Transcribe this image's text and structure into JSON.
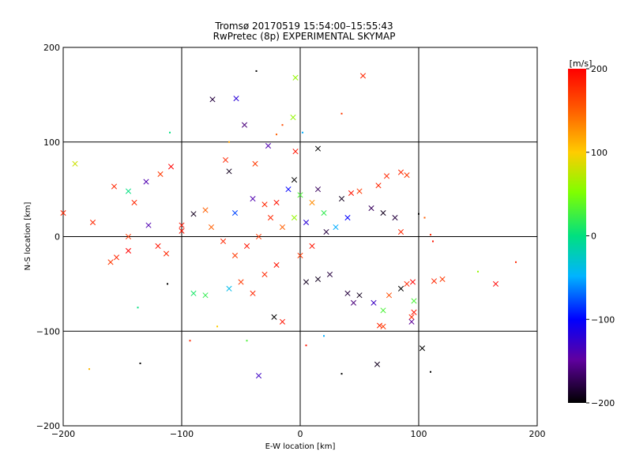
{
  "chart_data": {
    "type": "scatter",
    "title": "Tromsø 20170519 15:54:00–15:55:43",
    "subtitle": "RwPretec (8p) EXPERIMENTAL SKYMAP",
    "xlabel": "E-W location [km]",
    "ylabel": "N-S location [km]",
    "xlim": [
      -200,
      200
    ],
    "ylim": [
      -200,
      200
    ],
    "xticks": [
      "−200",
      "−100",
      "0",
      "100",
      "200"
    ],
    "yticks": [
      "−200",
      "−100",
      "0",
      "100",
      "200"
    ],
    "grid": true,
    "colorbar": {
      "label": "[m/s]",
      "min": -200,
      "max": 200,
      "ticks": [
        "200",
        "100",
        "0",
        "−100",
        "−200"
      ],
      "placement": "right"
    },
    "series": [
      {
        "marker": "x",
        "points": [
          {
            "x": 53,
            "y": 170,
            "v": 180
          },
          {
            "x": -4,
            "y": 168,
            "v": 60
          },
          {
            "x": -74,
            "y": 145,
            "v": -180
          },
          {
            "x": -54,
            "y": 146,
            "v": -120
          },
          {
            "x": -6,
            "y": 126,
            "v": 60
          },
          {
            "x": -47,
            "y": 118,
            "v": -160
          },
          {
            "x": 15,
            "y": 93,
            "v": -200
          },
          {
            "x": -27,
            "y": 96,
            "v": -140
          },
          {
            "x": -190,
            "y": 77,
            "v": 80
          },
          {
            "x": -130,
            "y": 58,
            "v": -140
          },
          {
            "x": -157,
            "y": 53,
            "v": 180
          },
          {
            "x": -145,
            "y": 48,
            "v": 0
          },
          {
            "x": -140,
            "y": 36,
            "v": 180
          },
          {
            "x": -118,
            "y": 66,
            "v": 170
          },
          {
            "x": -109,
            "y": 74,
            "v": 200
          },
          {
            "x": -63,
            "y": 81,
            "v": 180
          },
          {
            "x": -60,
            "y": 69,
            "v": -190
          },
          {
            "x": -38,
            "y": 77,
            "v": 170
          },
          {
            "x": -4,
            "y": 90,
            "v": 190
          },
          {
            "x": 73,
            "y": 64,
            "v": 180
          },
          {
            "x": 85,
            "y": 68,
            "v": 180
          },
          {
            "x": 90,
            "y": 65,
            "v": 170
          },
          {
            "x": 66,
            "y": 54,
            "v": 180
          },
          {
            "x": 50,
            "y": 48,
            "v": 170
          },
          {
            "x": 43,
            "y": 46,
            "v": 190
          },
          {
            "x": -10,
            "y": 50,
            "v": -100
          },
          {
            "x": 0,
            "y": 44,
            "v": 30
          },
          {
            "x": 10,
            "y": 36,
            "v": 130
          },
          {
            "x": -20,
            "y": 36,
            "v": 190
          },
          {
            "x": -30,
            "y": 34,
            "v": 180
          },
          {
            "x": -80,
            "y": 28,
            "v": 150
          },
          {
            "x": -90,
            "y": 24,
            "v": -190
          },
          {
            "x": -100,
            "y": 12,
            "v": 190
          },
          {
            "x": -128,
            "y": 12,
            "v": -140
          },
          {
            "x": -200,
            "y": 25,
            "v": 180
          },
          {
            "x": -175,
            "y": 15,
            "v": 180
          },
          {
            "x": -145,
            "y": 0,
            "v": 170
          },
          {
            "x": -155,
            "y": -22,
            "v": 180
          },
          {
            "x": -160,
            "y": -27,
            "v": 170
          },
          {
            "x": -145,
            "y": -15,
            "v": 200
          },
          {
            "x": -120,
            "y": -10,
            "v": 190
          },
          {
            "x": -113,
            "y": -18,
            "v": 180
          },
          {
            "x": -100,
            "y": 6,
            "v": 190
          },
          {
            "x": -90,
            "y": -60,
            "v": 10
          },
          {
            "x": -80,
            "y": -62,
            "v": 20
          },
          {
            "x": -60,
            "y": -55,
            "v": -40
          },
          {
            "x": -50,
            "y": -48,
            "v": 170
          },
          {
            "x": -40,
            "y": -60,
            "v": 180
          },
          {
            "x": -22,
            "y": -85,
            "v": -200
          },
          {
            "x": -15,
            "y": -90,
            "v": 190
          },
          {
            "x": 5,
            "y": -48,
            "v": -190
          },
          {
            "x": 15,
            "y": -45,
            "v": -190
          },
          {
            "x": 25,
            "y": -40,
            "v": -180
          },
          {
            "x": 40,
            "y": -60,
            "v": -180
          },
          {
            "x": 45,
            "y": -70,
            "v": -160
          },
          {
            "x": 50,
            "y": -62,
            "v": -190
          },
          {
            "x": 62,
            "y": -70,
            "v": -130
          },
          {
            "x": 70,
            "y": -78,
            "v": 30
          },
          {
            "x": 75,
            "y": -62,
            "v": 160
          },
          {
            "x": 85,
            "y": -55,
            "v": -200
          },
          {
            "x": 90,
            "y": -50,
            "v": 180
          },
          {
            "x": 95,
            "y": -48,
            "v": 200
          },
          {
            "x": 94,
            "y": -85,
            "v": 180
          },
          {
            "x": 96,
            "y": -80,
            "v": 190
          },
          {
            "x": 94,
            "y": -90,
            "v": -150
          },
          {
            "x": 96,
            "y": -68,
            "v": 30
          },
          {
            "x": 67,
            "y": -94,
            "v": 180
          },
          {
            "x": 70,
            "y": -95,
            "v": 170
          },
          {
            "x": 103,
            "y": -118,
            "v": -200
          },
          {
            "x": 65,
            "y": -135,
            "v": -190
          },
          {
            "x": -35,
            "y": -147,
            "v": -130
          },
          {
            "x": 165,
            "y": -50,
            "v": 200
          },
          {
            "x": 113,
            "y": -47,
            "v": 180
          },
          {
            "x": 120,
            "y": -45,
            "v": 170
          },
          {
            "x": 85,
            "y": 5,
            "v": 180
          },
          {
            "x": 80,
            "y": 20,
            "v": -180
          },
          {
            "x": 70,
            "y": 25,
            "v": -190
          },
          {
            "x": 60,
            "y": 30,
            "v": -170
          },
          {
            "x": 40,
            "y": 20,
            "v": -100
          },
          {
            "x": 30,
            "y": 10,
            "v": -50
          },
          {
            "x": 20,
            "y": 25,
            "v": 20
          },
          {
            "x": 5,
            "y": 15,
            "v": -120
          },
          {
            "x": -5,
            "y": 20,
            "v": 60
          },
          {
            "x": -15,
            "y": 10,
            "v": 150
          },
          {
            "x": -25,
            "y": 20,
            "v": 180
          },
          {
            "x": -35,
            "y": 0,
            "v": 170
          },
          {
            "x": -45,
            "y": -10,
            "v": 190
          },
          {
            "x": -55,
            "y": -20,
            "v": 170
          },
          {
            "x": -65,
            "y": -5,
            "v": 180
          },
          {
            "x": -75,
            "y": 10,
            "v": 150
          },
          {
            "x": -55,
            "y": 25,
            "v": -80
          },
          {
            "x": -40,
            "y": 40,
            "v": -140
          },
          {
            "x": -20,
            "y": -30,
            "v": 190
          },
          {
            "x": -30,
            "y": -40,
            "v": 180
          },
          {
            "x": 0,
            "y": -20,
            "v": 170
          },
          {
            "x": 10,
            "y": -10,
            "v": 190
          },
          {
            "x": 22,
            "y": 5,
            "v": -180
          },
          {
            "x": 35,
            "y": 40,
            "v": -190
          },
          {
            "x": 15,
            "y": 50,
            "v": -170
          },
          {
            "x": -5,
            "y": 60,
            "v": -200
          }
        ]
      },
      {
        "marker": "dot",
        "points": [
          {
            "x": -37,
            "y": 175,
            "v": -200
          },
          {
            "x": 35,
            "y": 130,
            "v": 170
          },
          {
            "x": -15,
            "y": 118,
            "v": 160
          },
          {
            "x": -110,
            "y": 110,
            "v": 0
          },
          {
            "x": -135,
            "y": -134,
            "v": -200
          },
          {
            "x": 35,
            "y": -145,
            "v": -200
          },
          {
            "x": -178,
            "y": -140,
            "v": 110
          },
          {
            "x": 150,
            "y": -37,
            "v": 60
          },
          {
            "x": 182,
            "y": -27,
            "v": 180
          },
          {
            "x": 110,
            "y": -143,
            "v": -200
          },
          {
            "x": -137,
            "y": -75,
            "v": 0
          },
          {
            "x": -112,
            "y": -50,
            "v": -200
          },
          {
            "x": -70,
            "y": -95,
            "v": 100
          },
          {
            "x": -93,
            "y": -110,
            "v": 180
          },
          {
            "x": -45,
            "y": -110,
            "v": 30
          },
          {
            "x": 5,
            "y": -115,
            "v": 190
          },
          {
            "x": 20,
            "y": -105,
            "v": -50
          },
          {
            "x": 112,
            "y": -5,
            "v": 190
          },
          {
            "x": 110,
            "y": 2,
            "v": 180
          },
          {
            "x": 105,
            "y": 20,
            "v": 150
          },
          {
            "x": 100,
            "y": 24,
            "v": -200
          },
          {
            "x": -60,
            "y": 100,
            "v": 120
          },
          {
            "x": 2,
            "y": 110,
            "v": -50
          },
          {
            "x": -20,
            "y": 108,
            "v": 150
          }
        ]
      }
    ]
  }
}
